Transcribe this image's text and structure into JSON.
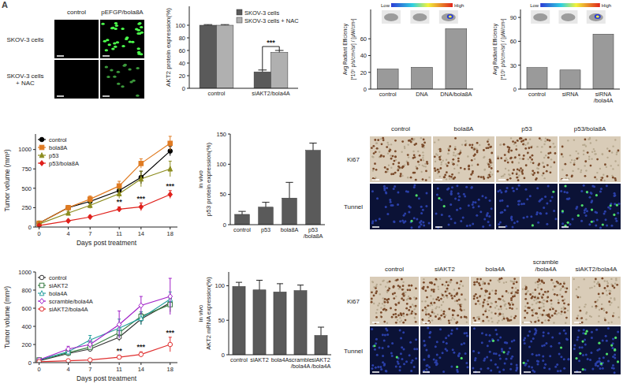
{
  "panel_label": "A",
  "chart_data": [
    {
      "type": "bar",
      "y_label": "AKT2 protein expression(%)",
      "categories": [
        "control",
        "siAKT2/bola4A"
      ],
      "series": [
        {
          "name": "SKOV-3 cells",
          "color": "#5a5a5a",
          "values": [
            100,
            26
          ],
          "error": [
            1,
            3
          ]
        },
        {
          "name": "SKOV-3 cells + NAC",
          "color": "#b0b0b0",
          "values": [
            100,
            57
          ],
          "error": [
            1,
            3
          ]
        }
      ],
      "ylim": [
        0,
        130
      ],
      "yticks": [
        0,
        20,
        40,
        60,
        80,
        100
      ],
      "legend": "upper right",
      "annotations": [
        {
          "text": "***",
          "category": 1
        }
      ]
    },
    {
      "type": "bar",
      "y_label": [
        "Avg Radiant Efficiency",
        "[*10⁵ p/s/cm²/sr] / [µW/cm²]"
      ],
      "categories": [
        "control",
        "DNA",
        "DNA/bola8A"
      ],
      "values": [
        24,
        26,
        72
      ],
      "color": "#9a9a9a",
      "ylim": [
        0,
        95
      ],
      "yticks": [
        0,
        20,
        40,
        60
      ],
      "colorbar_labels": [
        "Low",
        "High"
      ]
    },
    {
      "type": "bar",
      "y_label": [
        "Avg Radiant Efficiency",
        "[*10⁵ p/s/cm²/sr] / [µW/cm²]"
      ],
      "categories": [
        "control",
        "siRNA",
        "siRNA/bola4A"
      ],
      "values": [
        27,
        24,
        69
      ],
      "color": "#9a9a9a",
      "ylim": [
        0,
        100
      ],
      "yticks": [
        0,
        30,
        60,
        90
      ],
      "colorbar_labels": [
        "Low",
        "High"
      ]
    },
    {
      "type": "line",
      "x_label": "Days post treatment",
      "y_label": "Tumor volume (mm³)",
      "x": [
        0,
        4,
        7,
        11,
        14,
        18
      ],
      "xlim": [
        -0.5,
        19
      ],
      "xticks": [
        0,
        4,
        7,
        11,
        14,
        18
      ],
      "ylim": [
        0,
        1200
      ],
      "yticks": [
        0,
        250,
        500,
        750,
        1000
      ],
      "legend": "upper left",
      "series": [
        {
          "name": "control",
          "color": "#000000",
          "marker": "circle",
          "values": [
            50,
            250,
            330,
            470,
            640,
            980
          ],
          "error": [
            5,
            15,
            30,
            60,
            80,
            60
          ]
        },
        {
          "name": "bola8A",
          "color": "#e07b22",
          "marker": "square",
          "values": [
            50,
            250,
            360,
            530,
            820,
            1080
          ],
          "error": [
            5,
            15,
            40,
            60,
            60,
            90
          ]
        },
        {
          "name": "p53",
          "color": "#8c8c1e",
          "marker": "triangle",
          "values": [
            40,
            180,
            280,
            430,
            620,
            750
          ],
          "error": [
            5,
            20,
            40,
            60,
            100,
            100
          ]
        },
        {
          "name": "p53/bola8A",
          "color": "#e0201b",
          "marker": "diamond",
          "values": [
            20,
            80,
            130,
            230,
            260,
            420
          ],
          "error": [
            5,
            10,
            20,
            30,
            50,
            50
          ]
        }
      ],
      "annotations": [
        {
          "text": "**",
          "x": 11
        },
        {
          "text": "***",
          "x": 14
        },
        {
          "text": "***",
          "x": 18
        }
      ]
    },
    {
      "type": "bar",
      "y_label": [
        "in vivo",
        "p53 protein expression(%)"
      ],
      "categories": [
        "control",
        "p53",
        "bola8A",
        "p53/bola8A"
      ],
      "values": [
        17,
        29,
        44,
        123
      ],
      "error": [
        5,
        8,
        26,
        12
      ],
      "color": "#5a5a5a",
      "ylim": [
        0,
        150
      ],
      "yticks": [
        0,
        50,
        100,
        150
      ]
    },
    {
      "type": "line",
      "x_label": "Days post treatment",
      "y_label": "Tumor volume (mm³)",
      "x": [
        0,
        4,
        7,
        11,
        14,
        18
      ],
      "xlim": [
        -0.5,
        19
      ],
      "xticks": [
        0,
        4,
        7,
        11,
        14,
        18
      ],
      "ylim": [
        0,
        1000
      ],
      "yticks": [
        0,
        200,
        400,
        600,
        800,
        1000
      ],
      "legend": "upper left",
      "series": [
        {
          "name": "control",
          "color": "#333333",
          "marker": "open-circle",
          "values": [
            20,
            100,
            150,
            280,
            480,
            660
          ],
          "error": [
            5,
            20,
            30,
            40,
            60,
            50
          ]
        },
        {
          "name": "siAKT2",
          "color": "#3a7d44",
          "marker": "open-square",
          "values": [
            30,
            110,
            170,
            330,
            510,
            640
          ],
          "error": [
            5,
            20,
            30,
            50,
            50,
            80
          ]
        },
        {
          "name": "bola4A",
          "color": "#2aa0a0",
          "marker": "open-triangle",
          "values": [
            30,
            120,
            250,
            380,
            490,
            700
          ],
          "error": [
            5,
            30,
            50,
            100,
            70,
            80
          ]
        },
        {
          "name": "scramble/bola4A",
          "color": "#a020c8",
          "marker": "open-diamond",
          "values": [
            30,
            150,
            200,
            420,
            630,
            730
          ],
          "error": [
            5,
            30,
            40,
            150,
            100,
            200
          ]
        },
        {
          "name": "siAKT2/bola4A",
          "color": "#e03030",
          "marker": "open-circle",
          "values": [
            10,
            20,
            30,
            60,
            90,
            200
          ],
          "error": [
            3,
            5,
            10,
            20,
            30,
            80
          ]
        }
      ],
      "annotations": [
        {
          "text": "**",
          "x": 11
        },
        {
          "text": "***",
          "x": 14
        },
        {
          "text": "***",
          "x": 18
        }
      ]
    },
    {
      "type": "bar",
      "y_label": [
        "in vivo",
        "AKT2 mRNA expression(%)"
      ],
      "categories": [
        "control",
        "siAKT2",
        "bola4A",
        "scramble/bola4A",
        "siAKT2/bola4A"
      ],
      "values": [
        99,
        94,
        91,
        93,
        28
      ],
      "error": [
        6,
        14,
        12,
        8,
        12
      ],
      "color": "#5a5a5a",
      "ylim": [
        0,
        120
      ],
      "yticks": [
        0,
        50,
        100
      ]
    }
  ],
  "image_panels": [
    {
      "columns": [
        "control",
        "pEFGP/bola8A"
      ],
      "rows": [
        "SKOV-3 cells",
        "SKOV-3 cells + NAC"
      ]
    },
    {
      "columns": [
        "control",
        "bola8A",
        "p53",
        "p53/bola8A"
      ],
      "rows": [
        "Ki67",
        "Tunnel"
      ]
    },
    {
      "columns": [
        "control",
        "siAKT2",
        "bola4A",
        "scramble/bola4A",
        "siAKT2/bola4A"
      ],
      "rows": [
        "Ki67",
        "Tunnel"
      ]
    }
  ]
}
